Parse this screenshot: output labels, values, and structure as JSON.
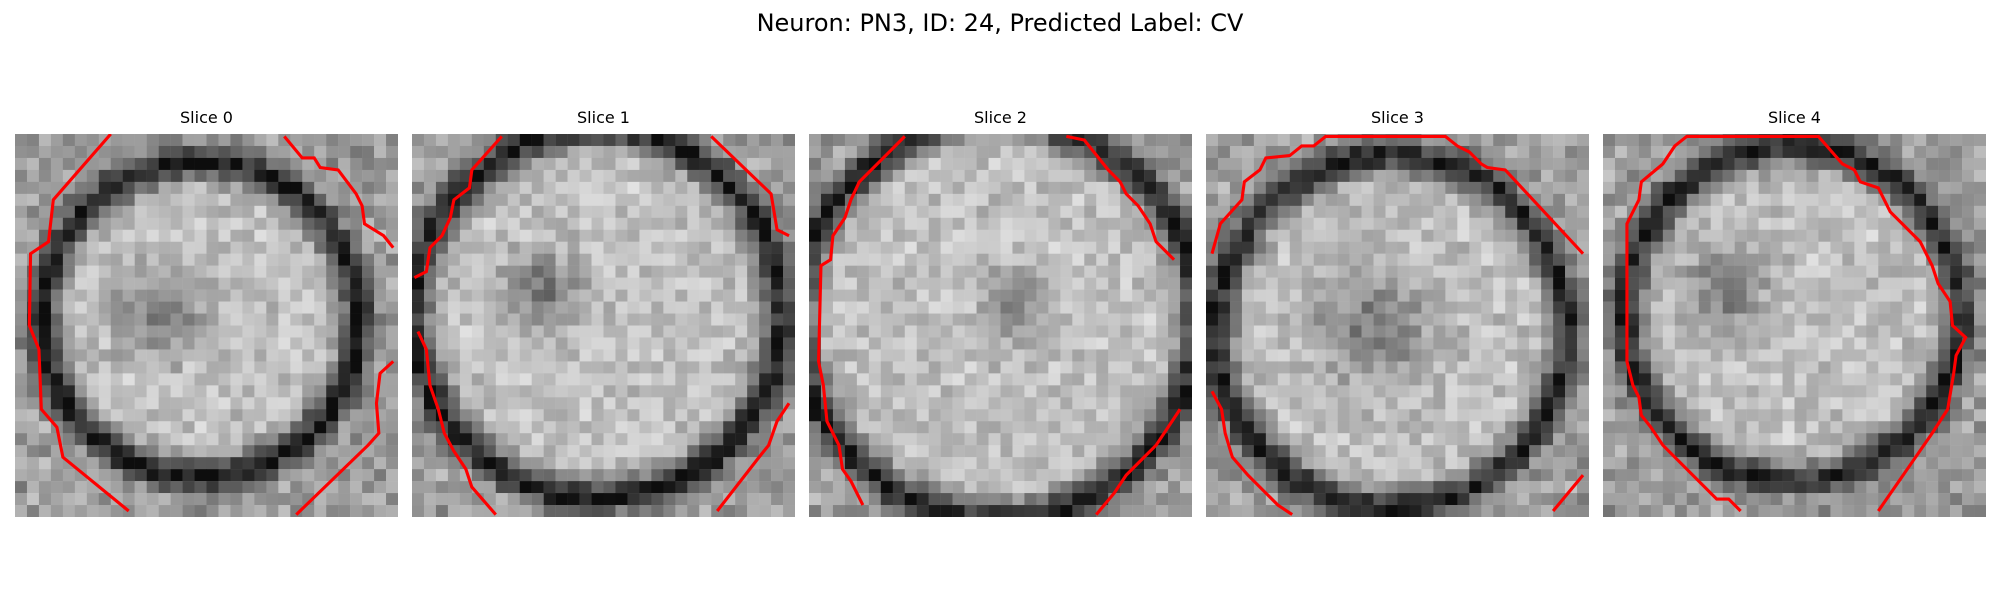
{
  "figure": {
    "title": "Neuron: PN3, ID: 24, Predicted Label: CV"
  },
  "panels": [
    {
      "title": "Slice 0"
    },
    {
      "title": "Slice 1"
    },
    {
      "title": "Slice 2"
    },
    {
      "title": "Slice 3"
    },
    {
      "title": "Slice 4"
    }
  ],
  "colors": {
    "contour": "#ff0000",
    "background": "#ffffff"
  }
}
